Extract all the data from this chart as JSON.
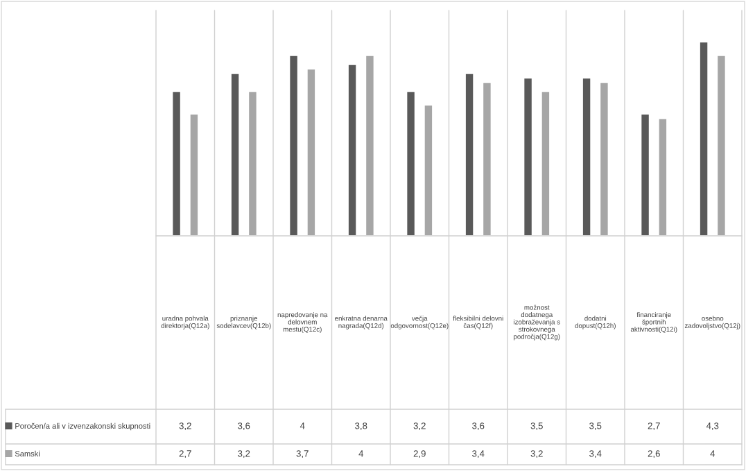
{
  "chart_data": {
    "type": "bar",
    "categories": [
      "uradna pohvala direktorja(Q12a)",
      "priznanje sodelavcev(Q12b)",
      "napredovanje na delovnem mestu(Q12c)",
      "enkratna denarna nagrada(Q12d)",
      "večja odgovornost(Q12e)",
      "fleksibilni delovni čas(Q12f)",
      "možnost dodatnega izobraževanja s strokovnega področja(Q12g)",
      "dodatni dopust(Q12h)",
      "financiranje športnih aktivnosti(Q12i)",
      "osebno zadovoljstvo(Q12j)"
    ],
    "series": [
      {
        "name": "Poročen/a ali v izvenzakonski skupnosti",
        "color": "#595959",
        "values": [
          3.2,
          3.6,
          4,
          3.8,
          3.2,
          3.6,
          3.5,
          3.5,
          2.7,
          4.3
        ],
        "value_labels": [
          "3,2",
          "3,6",
          "4",
          "3,8",
          "3,2",
          "3,6",
          "3,5",
          "3,5",
          "2,7",
          "4,3"
        ]
      },
      {
        "name": "Samski",
        "color": "#a6a6a6",
        "values": [
          2.7,
          3.2,
          3.7,
          4,
          2.9,
          3.4,
          3.2,
          3.4,
          2.6,
          4
        ],
        "value_labels": [
          "2,7",
          "3,2",
          "3,7",
          "4",
          "2,9",
          "3,4",
          "3,2",
          "3,4",
          "2,6",
          "4"
        ]
      }
    ],
    "ylim": [
      0,
      5
    ],
    "tick_labels": "x",
    "legend": "left"
  }
}
